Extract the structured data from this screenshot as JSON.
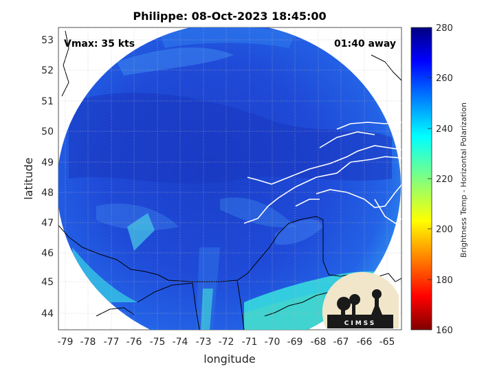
{
  "chart_data": {
    "type": "heatmap",
    "title": "Philippe: 08-Oct-2023 18:45:00",
    "xlabel": "longitude",
    "ylabel": "latitude",
    "xlim": [
      -79.5,
      -64.3
    ],
    "ylim": [
      43.5,
      53.4
    ],
    "xticks": [
      -79,
      -78,
      -77,
      -76,
      -75,
      -74,
      -73,
      -72,
      -71,
      -70,
      -69,
      -68,
      -67,
      -66,
      -65
    ],
    "yticks": [
      44,
      45,
      46,
      47,
      48,
      49,
      50,
      51,
      52,
      53
    ],
    "grid": true,
    "annotations": {
      "vmax": "Vmax: 35 kts",
      "away": "01:40 away"
    },
    "colorbar": {
      "label": "Brightness Temp - Horizontal Polarization",
      "range": [
        160,
        280
      ],
      "ticks": [
        160,
        180,
        200,
        220,
        240,
        260,
        280
      ],
      "colormap": "jet"
    },
    "swath": {
      "center_lon": -72.0,
      "center_lat": 48.5,
      "note": "circular microwave swath, values mostly 255-270 K; warmer band 235-245 K in south-east"
    },
    "colors": {
      "dominant": "#1f47d6",
      "warm_band": "#33cfe0",
      "coastline": "#ffffff",
      "border": "#000000"
    }
  },
  "logo": {
    "text": "CIMSS"
  }
}
